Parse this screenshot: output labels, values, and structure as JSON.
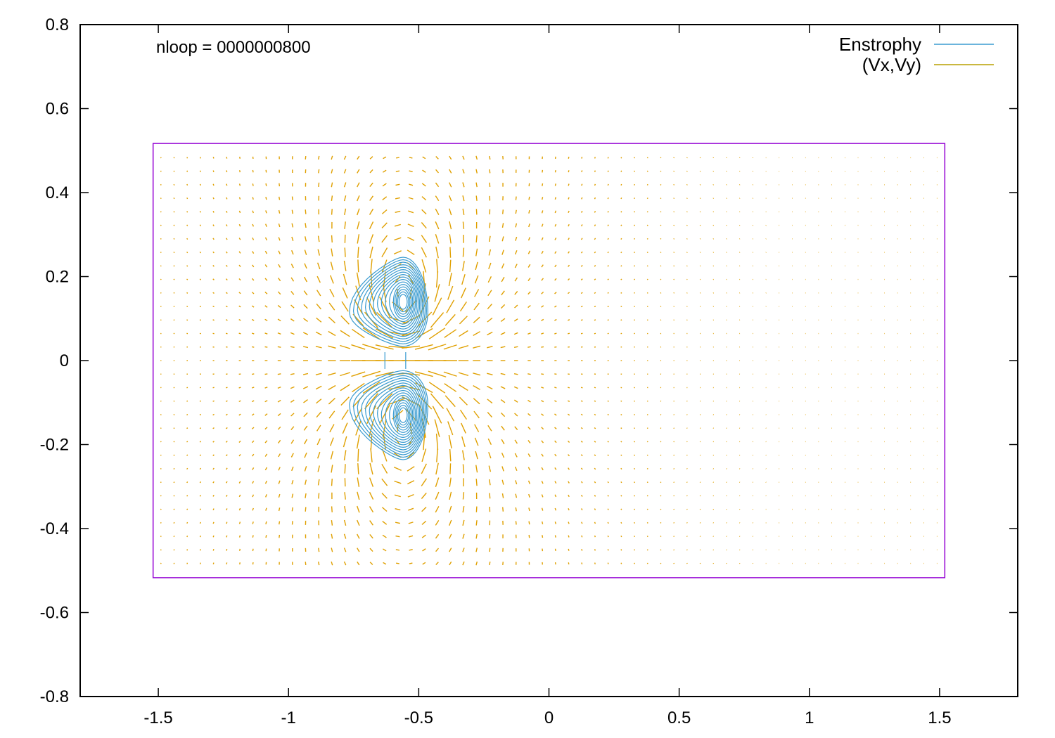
{
  "chart_data": {
    "type": "contour+vector",
    "title": "",
    "xlabel": "",
    "ylabel": "",
    "xlim": [
      -1.8,
      1.8
    ],
    "ylim": [
      -0.8,
      0.8
    ],
    "x_ticks": [
      "-1.5",
      "-1",
      "-0.5",
      "0",
      "0.5",
      "1",
      "1.5"
    ],
    "x_tick_values": [
      -1.5,
      -1,
      -0.5,
      0,
      0.5,
      1,
      1.5
    ],
    "y_ticks": [
      "0.8",
      "0.6",
      "0.4",
      "0.2",
      "0",
      "-0.2",
      "-0.4",
      "-0.6",
      "-0.8"
    ],
    "y_tick_values": [
      0.8,
      0.6,
      0.4,
      0.2,
      0,
      -0.2,
      -0.4,
      -0.6,
      -0.8
    ],
    "annotation": "nloop = 0000000800",
    "legend_position": "top-right",
    "series": [
      {
        "name": "Enstrophy",
        "color": "#3a9bd0",
        "kind": "contour"
      },
      {
        "name": "(Vx,Vy)",
        "color": "#b8a000",
        "kind": "vector"
      }
    ],
    "domain_box": {
      "x": [
        -1.52,
        1.52
      ],
      "y": [
        -0.517,
        0.517
      ],
      "color": "#9400d3"
    },
    "vector_color": "#e0a000",
    "grid": false
  }
}
